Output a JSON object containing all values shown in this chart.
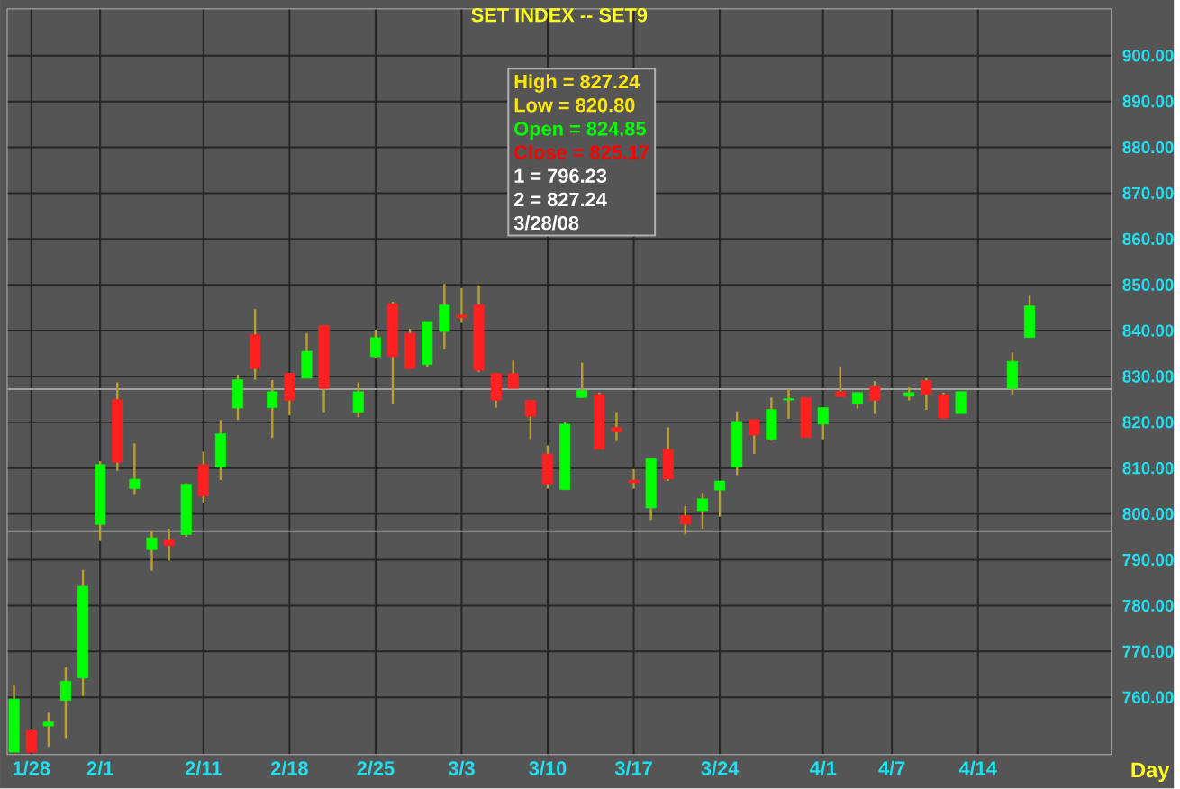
{
  "chart_data": {
    "type": "candlestick",
    "title": "SET  INDEX -- SET9",
    "xlabel": "Day",
    "categories": [
      null,
      "1/28",
      null,
      null,
      null,
      "2/1",
      null,
      null,
      null,
      null,
      null,
      "2/11",
      null,
      null,
      null,
      null,
      "2/18",
      null,
      null,
      null,
      null,
      "2/25",
      null,
      null,
      null,
      null,
      "3/3",
      null,
      null,
      null,
      null,
      "3/10",
      null,
      null,
      null,
      null,
      "3/17",
      null,
      null,
      null,
      null,
      "3/24",
      null,
      null,
      null,
      null,
      null,
      "4/1",
      null,
      null,
      null,
      "4/7",
      null,
      null,
      null,
      null,
      "4/14",
      null,
      null,
      null
    ],
    "ohlc": [
      [
        748,
        762.7,
        748,
        759.6
      ],
      [
        752.8,
        753,
        748,
        748
      ],
      [
        753.7,
        756.6,
        749.2,
        754.6
      ],
      [
        759.3,
        766.5,
        751.1,
        763.5
      ],
      [
        764.2,
        787.8,
        760.3,
        784.2
      ],
      [
        797.7,
        811.5,
        794.1,
        810.8
      ],
      [
        825.0,
        828.7,
        809.4,
        811.3
      ],
      [
        805.5,
        815.4,
        804.2,
        807.6
      ],
      [
        792.2,
        796.4,
        787.6,
        794.8
      ],
      [
        794.4,
        796.8,
        789.8,
        793.1
      ],
      [
        795.5,
        806.7,
        795.0,
        806.5
      ],
      [
        810.8,
        813.6,
        802.3,
        803.9
      ],
      [
        810.2,
        820.5,
        807.4,
        817.5
      ],
      [
        823.1,
        830.4,
        820.5,
        829.3
      ],
      [
        839.1,
        844.7,
        829.3,
        831.7
      ],
      [
        823.2,
        829.2,
        816.6,
        826.7
      ],
      [
        830.7,
        830.7,
        821.5,
        824.8
      ],
      [
        829.6,
        839.4,
        829.6,
        835.5
      ],
      [
        841.1,
        841.1,
        822.2,
        827.4
      ],
      null,
      [
        822.2,
        828.7,
        821.1,
        826.7
      ],
      [
        834.3,
        840.2,
        833.9,
        838.5
      ],
      [
        845.9,
        846.3,
        824.1,
        834.3
      ],
      [
        839.4,
        840.4,
        831.7,
        831.7
      ],
      [
        832.6,
        842.0,
        832.0,
        842.0
      ],
      [
        839.8,
        850.2,
        835.9,
        845.6
      ],
      [
        843.4,
        849.3,
        841.7,
        842.8
      ],
      [
        845.6,
        849.9,
        831.0,
        831.3
      ],
      [
        830.7,
        830.7,
        823.2,
        824.8
      ],
      [
        830.7,
        833.5,
        827.4,
        827.4
      ],
      [
        824.8,
        824.8,
        816.3,
        821.3
      ],
      [
        813.1,
        815.0,
        805.5,
        806.5
      ],
      [
        805.3,
        820.0,
        805.3,
        819.6
      ],
      [
        825.4,
        833.0,
        825.4,
        827.0
      ],
      [
        826.1,
        826.5,
        814.1,
        814.1
      ],
      [
        818.9,
        822.2,
        815.9,
        817.9
      ],
      [
        807.4,
        809.8,
        805.5,
        806.8
      ],
      [
        801.3,
        812.1,
        798.7,
        812.1
      ],
      [
        814.1,
        818.9,
        807.2,
        807.6
      ],
      [
        799.6,
        801.7,
        795.5,
        797.8
      ],
      [
        800.7,
        804.6,
        796.8,
        803.3
      ],
      [
        805.2,
        807.2,
        799.4,
        807.2
      ],
      [
        810.2,
        822.4,
        808.5,
        820.2
      ],
      [
        820.6,
        820.6,
        813.1,
        817.2
      ],
      [
        816.3,
        825.4,
        816.0,
        822.8
      ],
      [
        824.85,
        827.24,
        820.8,
        825.17
      ],
      [
        825.4,
        825.4,
        816.7,
        816.7
      ],
      [
        819.6,
        823.2,
        816.3,
        823.2
      ],
      [
        826.7,
        832.0,
        825.6,
        825.6
      ],
      [
        824.1,
        826.5,
        823.0,
        826.5
      ],
      [
        827.8,
        829.0,
        821.8,
        824.8
      ],
      null,
      [
        825.7,
        827.6,
        824.8,
        826.5
      ],
      [
        829.1,
        829.6,
        822.7,
        826.1
      ],
      [
        826.1,
        826.5,
        820.9,
        820.9
      ],
      [
        821.9,
        826.7,
        821.9,
        826.7
      ],
      null,
      null,
      [
        827.4,
        835.2,
        826.1,
        833.3
      ],
      [
        838.5,
        847.6,
        838.5,
        845.4
      ]
    ],
    "colors": [
      "#00ff00",
      "#ff2020",
      "#00ff00",
      "#00ff00",
      "#00ff00",
      "#00ff00",
      "#ff2020",
      "#00ff00",
      "#00ff00",
      "#ff2020",
      "#00ff00",
      "#ff2020",
      "#00ff00",
      "#00ff00",
      "#ff2020",
      "#00ff00",
      "#ff2020",
      "#00ff00",
      "#ff2020",
      null,
      "#00ff00",
      "#00ff00",
      "#ff2020",
      "#ff2020",
      "#00ff00",
      "#00ff00",
      "#ff2020",
      "#ff2020",
      "#ff2020",
      "#ff2020",
      "#ff2020",
      "#ff2020",
      "#00ff00",
      "#00ff00",
      "#ff2020",
      "#ff2020",
      "#ff2020",
      "#00ff00",
      "#ff2020",
      "#ff2020",
      "#00ff00",
      "#00ff00",
      "#00ff00",
      "#ff2020",
      "#00ff00",
      "#00ff00",
      "#ff2020",
      "#00ff00",
      "#ff2020",
      "#00ff00",
      "#ff2020",
      null,
      "#00ff00",
      "#ff2020",
      "#ff2020",
      "#00ff00",
      null,
      null,
      "#00ff00",
      "#00ff00"
    ],
    "ylim": [
      747.5,
      910.2
    ],
    "yticks": [
      {
        "value": 760,
        "label": "760.00"
      },
      {
        "value": 770,
        "label": "770.00"
      },
      {
        "value": 780,
        "label": "780.00"
      },
      {
        "value": 790,
        "label": "790.00"
      },
      {
        "value": 800,
        "label": "800.00"
      },
      {
        "value": 810,
        "label": "810.00"
      },
      {
        "value": 820,
        "label": "820.00"
      },
      {
        "value": 830,
        "label": "830.00"
      },
      {
        "value": 840,
        "label": "840.00"
      },
      {
        "value": 850,
        "label": "850.00"
      },
      {
        "value": 860,
        "label": "860.00"
      },
      {
        "value": 870,
        "label": "870.00"
      },
      {
        "value": 880,
        "label": "880.00"
      },
      {
        "value": 890,
        "label": "890.00"
      },
      {
        "value": 900,
        "label": "900.00"
      }
    ],
    "ref_lines": [
      {
        "axis": "y",
        "value": 827.24,
        "color": "#a0a0a0"
      },
      {
        "axis": "y",
        "value": 796.23,
        "color": "#a0a0a0"
      }
    ],
    "annotations": [
      "High  =  827.24",
      "Low   =  820.80",
      "Open  =  824.85",
      "Close =  825.17",
      "1  =  796.23",
      "2  =  827.24",
      "3/28/08"
    ],
    "grid": true
  }
}
